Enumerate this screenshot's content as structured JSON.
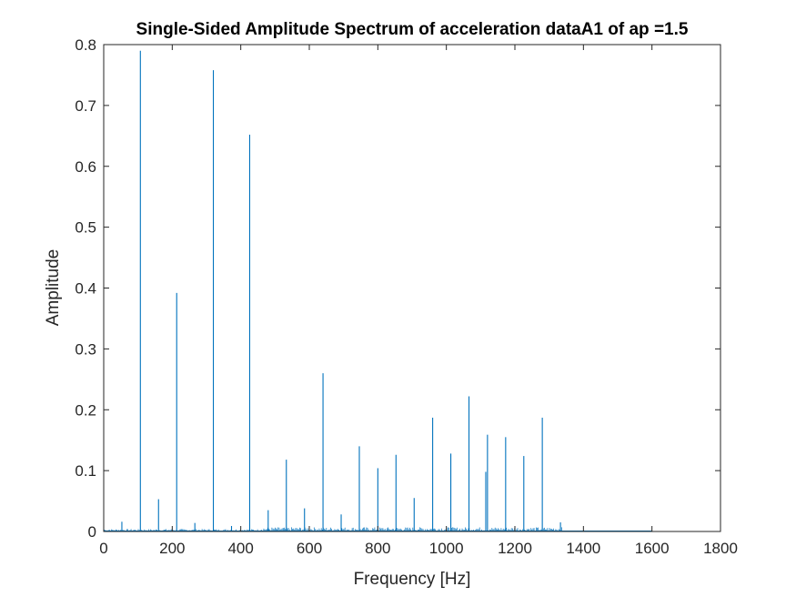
{
  "chart_data": {
    "type": "line",
    "title": "Single-Sided Amplitude Spectrum of acceleration dataA1 of ap =1.5",
    "xlabel": "Frequency [Hz]",
    "ylabel": "Amplitude",
    "xlim": [
      0,
      1800
    ],
    "ylim": [
      0,
      0.8
    ],
    "xticks": [
      0,
      200,
      400,
      600,
      800,
      1000,
      1200,
      1400,
      1600,
      1800
    ],
    "yticks": [
      0,
      0.1,
      0.2,
      0.3,
      0.4,
      0.5,
      0.6,
      0.7,
      0.8
    ],
    "xtick_labels": [
      "0",
      "200",
      "400",
      "600",
      "800",
      "1000",
      "1200",
      "1400",
      "1600",
      "1800"
    ],
    "ytick_labels": [
      "0",
      "0.1",
      "0.2",
      "0.3",
      "0.4",
      "0.5",
      "0.6",
      "0.7",
      "0.8"
    ],
    "grid": false,
    "line_color": "#0072bd",
    "spectrum_end_hz": 1600,
    "series": [
      {
        "peaks": [
          {
            "x": 53,
            "y": 0.016
          },
          {
            "x": 107,
            "y": 0.79
          },
          {
            "x": 160,
            "y": 0.053
          },
          {
            "x": 213,
            "y": 0.392
          },
          {
            "x": 266,
            "y": 0.014
          },
          {
            "x": 320,
            "y": 0.758
          },
          {
            "x": 373,
            "y": 0.009
          },
          {
            "x": 426,
            "y": 0.652
          },
          {
            "x": 480,
            "y": 0.035
          },
          {
            "x": 533,
            "y": 0.118
          },
          {
            "x": 586,
            "y": 0.038
          },
          {
            "x": 640,
            "y": 0.26
          },
          {
            "x": 693,
            "y": 0.028
          },
          {
            "x": 746,
            "y": 0.14
          },
          {
            "x": 800,
            "y": 0.104
          },
          {
            "x": 853,
            "y": 0.126
          },
          {
            "x": 906,
            "y": 0.055
          },
          {
            "x": 960,
            "y": 0.187
          },
          {
            "x": 1013,
            "y": 0.128
          },
          {
            "x": 1066,
            "y": 0.222
          },
          {
            "x": 1115,
            "y": 0.098
          },
          {
            "x": 1120,
            "y": 0.159
          },
          {
            "x": 1173,
            "y": 0.155
          },
          {
            "x": 1226,
            "y": 0.124
          },
          {
            "x": 1280,
            "y": 0.187
          },
          {
            "x": 1333,
            "y": 0.015
          }
        ]
      }
    ]
  }
}
